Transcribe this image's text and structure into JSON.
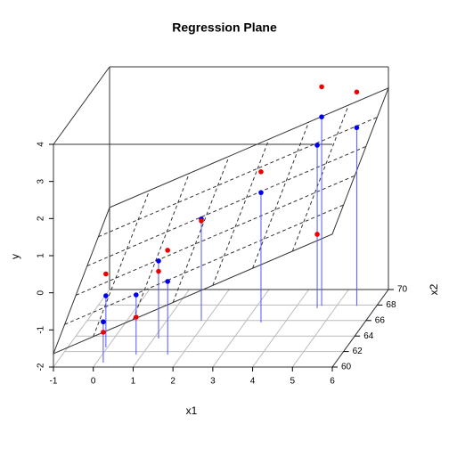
{
  "chart_data": {
    "type": "scatter3d",
    "title": "Regression Plane",
    "xlabel": "x1",
    "ylabel": "x2",
    "zlabel": "y",
    "x1": [
      5.5,
      4.62,
      4.55,
      3.4,
      1.87,
      1.12,
      1.64,
      0.85,
      -0.04,
      0.17
    ],
    "x2": [
      67.9,
      67.9,
      67.6,
      65.75,
      65.98,
      63.68,
      61.61,
      61.6,
      62.53,
      60.57
    ],
    "y": [
      3.76,
      3.9,
      -0.01,
      2.06,
      0.69,
      -0.19,
      0.81,
      -0.99,
      -0.02,
      -1.18
    ],
    "fitted": [
      2.8,
      3.09,
      2.39,
      1.5,
      0.74,
      0.09,
      -0.03,
      -0.39,
      -0.61,
      -0.9
    ],
    "observed_color": "#ee0000",
    "fitted_color": "#0000ee",
    "stem_color": "#5555ff",
    "plane": {
      "x1": [
        -1,
        6
      ],
      "x2": [
        60,
        70
      ],
      "y": [
        [
          -1.64,
          0.21
        ],
        [
          1.58,
          3.43
        ]
      ]
    },
    "xlim": [
      -1,
      6
    ],
    "x2lim": [
      60,
      70
    ],
    "ylim": [
      -2,
      4
    ],
    "xticks": [
      -1,
      0,
      1,
      2,
      3,
      4,
      5,
      6
    ],
    "x2ticks": [
      60,
      62,
      64,
      66,
      68,
      70
    ],
    "yticks": [
      -2,
      -1,
      0,
      1,
      2,
      3,
      4
    ],
    "grid": true
  }
}
